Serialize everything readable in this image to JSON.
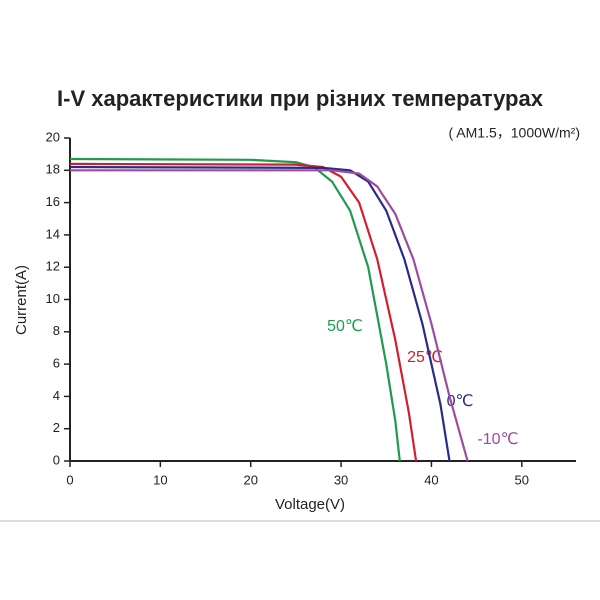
{
  "chart_data": {
    "type": "line",
    "title": "I-V характеристики при різних температурах",
    "subtitle": "( AM1.5，1000W/m²)",
    "x_label": "Voltage(V)",
    "y_label": "Current(A)",
    "xlim": [
      0,
      56
    ],
    "ylim": [
      0,
      20
    ],
    "xticks": [
      0,
      10,
      20,
      30,
      40,
      50
    ],
    "yticks": [
      0,
      2,
      4,
      6,
      8,
      10,
      12,
      14,
      16,
      18,
      20
    ],
    "series": [
      {
        "name": "50℃",
        "color": "#1f9a4e",
        "x": [
          0,
          20,
          25,
          27,
          29,
          31,
          33,
          35,
          36,
          36.5
        ],
        "values": [
          18.7,
          18.65,
          18.5,
          18.2,
          17.3,
          15.5,
          12,
          6,
          2.5,
          0
        ]
      },
      {
        "name": "25℃",
        "color": "#d0202e",
        "x": [
          0,
          25,
          28,
          30,
          32,
          34,
          36,
          37.5,
          38.3
        ],
        "values": [
          18.4,
          18.35,
          18.2,
          17.6,
          16,
          12.5,
          7.5,
          3,
          0
        ]
      },
      {
        "name": "0℃",
        "color": "#2a2a8a",
        "x": [
          0,
          28,
          31,
          33,
          35,
          37,
          39,
          41,
          42
        ],
        "values": [
          18.2,
          18.15,
          18,
          17.3,
          15.5,
          12.5,
          8.5,
          3.5,
          0
        ]
      },
      {
        "name": "-10℃",
        "color": "#a04a9e",
        "x": [
          0,
          29,
          32,
          34,
          36,
          38,
          40,
          42,
          44
        ],
        "values": [
          18,
          18,
          17.8,
          17,
          15.3,
          12.5,
          8.5,
          4,
          0
        ]
      }
    ]
  }
}
